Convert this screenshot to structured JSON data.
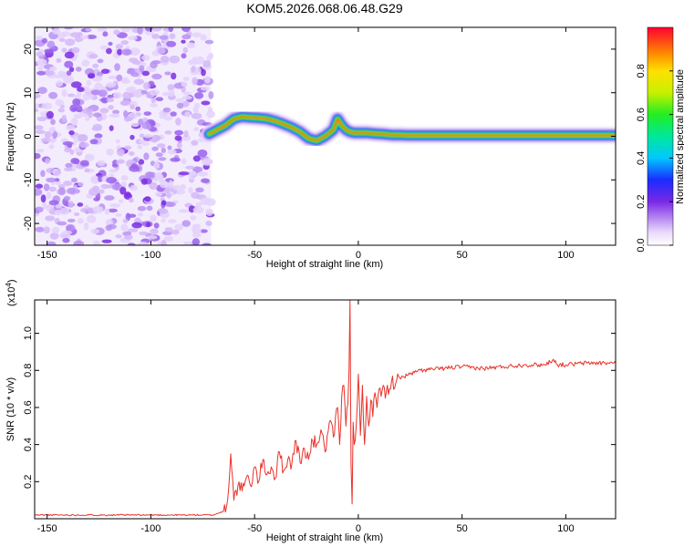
{
  "title": "KOM5.2026.068.06.48.G29",
  "spectrogram": {
    "xlabel": "Height of straight line (km)",
    "ylabel": "Frequency (Hz)",
    "xlim": [
      -156,
      124
    ],
    "ylim": [
      -25,
      25
    ],
    "xticks": [
      -150,
      -100,
      -50,
      0,
      50,
      100
    ],
    "yticks": [
      -20,
      -10,
      0,
      10,
      20
    ],
    "noise_region_x": [
      -156,
      -71
    ],
    "signal_track": {
      "x": [
        -72,
        -68,
        -64,
        -60,
        -56,
        -52,
        -48,
        -44,
        -40,
        -36,
        -32,
        -28,
        -24,
        -20,
        -16,
        -12,
        -10,
        -8,
        -6,
        -4,
        -2,
        0,
        4,
        8,
        12,
        16,
        20,
        24,
        40,
        60,
        80,
        100,
        124
      ],
      "y": [
        0.5,
        1.5,
        2.5,
        4.0,
        4.5,
        4.3,
        4.2,
        4.0,
        3.5,
        2.8,
        2.0,
        1.0,
        -0.5,
        -1.0,
        0.0,
        1.5,
        4.0,
        2.5,
        1.5,
        1.0,
        0.8,
        0.8,
        0.8,
        0.6,
        0.5,
        0.3,
        0.3,
        0.2,
        0.2,
        0.2,
        0.2,
        0.2,
        0.2
      ]
    }
  },
  "colorbar": {
    "label": "Normalized spectral amplitude",
    "ticks": [
      0.0,
      0.2,
      0.4,
      0.6,
      0.8
    ],
    "range": [
      0,
      1
    ]
  },
  "chart_data": {
    "type": "line",
    "title": "KOM5.2026.068.06.48.G29",
    "xlabel": "Height of straight line (km)",
    "ylabel": "SNR (10 * v/v)",
    "scale_label": "(x10",
    "scale_exp": "4",
    "xlim": [
      -156,
      124
    ],
    "ylim": [
      0,
      1.18
    ],
    "xticks": [
      -150,
      -100,
      -50,
      0,
      50,
      100
    ],
    "yticks": [
      0.2,
      0.4,
      0.6,
      0.8,
      1.0
    ],
    "series": [
      {
        "name": "SNR",
        "color": "#e8322a",
        "x": [
          -156,
          -140,
          -120,
          -100,
          -80,
          -70,
          -65,
          -63,
          -61.5,
          -60.5,
          -60,
          -58,
          -56,
          -54,
          -52,
          -50,
          -48,
          -46,
          -44,
          -42,
          -40,
          -38,
          -36,
          -34,
          -32,
          -30,
          -28,
          -26,
          -24,
          -22,
          -20,
          -18,
          -16,
          -14,
          -12,
          -10,
          -9,
          -8,
          -7,
          -6,
          -5,
          -4.5,
          -4,
          -3.5,
          -3,
          -2.5,
          -2,
          -1,
          0,
          1,
          2,
          3,
          4,
          5,
          6,
          7,
          8,
          9,
          10,
          11,
          12,
          13,
          14,
          15,
          16,
          18,
          20,
          25,
          30,
          40,
          50,
          60,
          70,
          80,
          90,
          94,
          96,
          100,
          110,
          124
        ],
        "y": [
          0.02,
          0.02,
          0.02,
          0.02,
          0.02,
          0.02,
          0.04,
          0.1,
          0.35,
          0.2,
          0.1,
          0.18,
          0.15,
          0.22,
          0.18,
          0.28,
          0.2,
          0.32,
          0.24,
          0.28,
          0.22,
          0.36,
          0.26,
          0.32,
          0.3,
          0.42,
          0.3,
          0.38,
          0.32,
          0.42,
          0.4,
          0.48,
          0.36,
          0.52,
          0.44,
          0.6,
          0.4,
          0.66,
          0.72,
          0.5,
          0.62,
          0.8,
          1.18,
          0.3,
          0.08,
          0.52,
          0.4,
          0.5,
          0.78,
          0.45,
          0.72,
          0.4,
          0.66,
          0.5,
          0.64,
          0.55,
          0.68,
          0.6,
          0.7,
          0.66,
          0.72,
          0.65,
          0.72,
          0.7,
          0.74,
          0.73,
          0.76,
          0.78,
          0.8,
          0.81,
          0.82,
          0.81,
          0.82,
          0.83,
          0.83,
          0.86,
          0.83,
          0.83,
          0.84,
          0.84
        ]
      }
    ]
  }
}
